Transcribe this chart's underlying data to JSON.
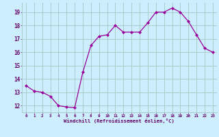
{
  "x": [
    0,
    1,
    2,
    3,
    4,
    5,
    6,
    7,
    8,
    9,
    10,
    11,
    12,
    13,
    14,
    15,
    16,
    17,
    18,
    19,
    20,
    21,
    22,
    23
  ],
  "y": [
    13.5,
    13.1,
    13.0,
    12.7,
    12.0,
    11.9,
    11.85,
    14.5,
    16.5,
    17.2,
    17.3,
    18.0,
    17.5,
    17.5,
    17.5,
    18.2,
    19.0,
    19.0,
    19.3,
    19.0,
    18.3,
    17.3,
    16.3,
    16.0
  ],
  "line_color": "#990099",
  "marker": "D",
  "marker_size": 2,
  "bg_color": "#cceeff",
  "grid_color": "#aacccc",
  "xlabel": "Windchill (Refroidissement éolien,°C)",
  "xlabel_color": "#660066",
  "tick_color": "#660066",
  "ylim": [
    11.5,
    19.7
  ],
  "xlim": [
    -0.5,
    23.5
  ],
  "yticks": [
    12,
    13,
    14,
    15,
    16,
    17,
    18,
    19
  ],
  "xticks": [
    0,
    1,
    2,
    3,
    4,
    5,
    6,
    7,
    8,
    9,
    10,
    11,
    12,
    13,
    14,
    15,
    16,
    17,
    18,
    19,
    20,
    21,
    22,
    23
  ]
}
